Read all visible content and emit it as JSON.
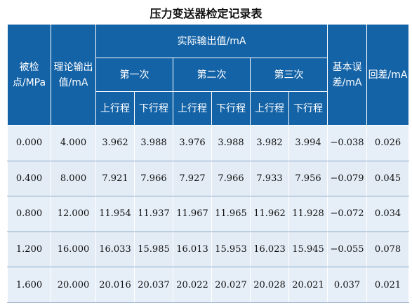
{
  "title": "压力变送器检定记录表",
  "headers": {
    "checkpoint": "被检点/MPa",
    "theory": "理论输出值/mA",
    "actual_output": "实际输出值/mA",
    "runs": [
      "第一次",
      "第二次",
      "第三次"
    ],
    "up": "上行程",
    "down": "下行程",
    "basic_error": "基本误差/mA",
    "hysteresis": "回差/mA"
  },
  "rows": [
    {
      "point": "0.000",
      "theory": "4.000",
      "vals": [
        "3.962",
        "3.988",
        "3.976",
        "3.988",
        "3.982",
        "3.994"
      ],
      "error": "−0.038",
      "hyst": "0.026"
    },
    {
      "point": "0.400",
      "theory": "8.000",
      "vals": [
        "7.921",
        "7.966",
        "7.927",
        "7.966",
        "7.933",
        "7.956"
      ],
      "error": "−0.079",
      "hyst": "0.045"
    },
    {
      "point": "0.800",
      "theory": "12.000",
      "vals": [
        "11.954",
        "11.937",
        "11.967",
        "11.965",
        "11.962",
        "11.928"
      ],
      "error": "−0.072",
      "hyst": "0.034"
    },
    {
      "point": "1.200",
      "theory": "16.000",
      "vals": [
        "16.033",
        "15.985",
        "16.013",
        "15.953",
        "16.023",
        "15.945"
      ],
      "error": "−0.055",
      "hyst": "0.078"
    },
    {
      "point": "1.600",
      "theory": "20.000",
      "vals": [
        "20.016",
        "20.037",
        "20.022",
        "20.027",
        "20.028",
        "20.021"
      ],
      "error": "0.037",
      "hyst": "0.021"
    }
  ]
}
